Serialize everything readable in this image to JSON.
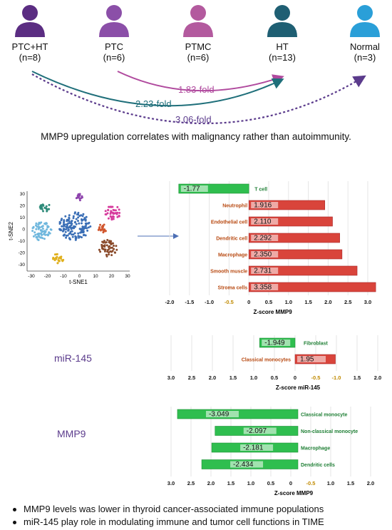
{
  "groups": [
    {
      "name": "PTC+HT",
      "n": "(n=8)",
      "color": "#5b2d82"
    },
    {
      "name": "PTC",
      "n": "(n=6)",
      "color": "#8b4fa8"
    },
    {
      "name": "PTMC",
      "n": "(n=6)",
      "color": "#b35a9e"
    },
    {
      "name": "HT",
      "n": "(n=13)",
      "color": "#1f5f73"
    },
    {
      "name": "Normal",
      "n": "(n=3)",
      "color": "#2a9fd8"
    }
  ],
  "folds": [
    {
      "label": "1.83-fold",
      "color": "#b04a9e"
    },
    {
      "label": "2.23-fold",
      "color": "#1f6f7a"
    },
    {
      "label": "3.06-fold",
      "color": "#5b3b8c"
    }
  ],
  "conclusion": "MMP9 upregulation correlates with malignancy rather than autoimmunity.",
  "tsne": {
    "xlabel": "t-SNE1",
    "ylabel": "t-SNE2",
    "xticks": [
      "-30",
      "-20",
      "-10",
      "0",
      "10",
      "20",
      "30"
    ],
    "yticks": [
      "30",
      "20",
      "10",
      "0",
      "-10",
      "-20",
      "-30"
    ]
  },
  "panel_labels": {
    "mir145": "miR-145",
    "mmp9": "MMP9"
  },
  "bullets": [
    "MMP9 levels was lower in thyroid cancer-associated immune populations",
    "miR-145 play role in modulating immune and tumor cell functions in TIME"
  ],
  "chart_data": [
    {
      "type": "bar",
      "orientation": "horizontal",
      "xlabel": "Z-score MMP9",
      "ticks": [
        "-2.0",
        "-1.5",
        "-1.0",
        "-0.5",
        "0",
        "0.5",
        "1.0",
        "1.5",
        "2.0",
        "2.5",
        "3.0"
      ],
      "xlim": [
        -2.0,
        3.2
      ],
      "bars": [
        {
          "cell": "T cell",
          "value": -1.77,
          "label": "-1.77"
        },
        {
          "cell": "Neutrophil",
          "value": 1.916,
          "label": "1.916"
        },
        {
          "cell": "Endothelial cell",
          "value": 2.11,
          "label": "2.110"
        },
        {
          "cell": "Dendritic cell",
          "value": 2.292,
          "label": "2.292"
        },
        {
          "cell": "Macrophage",
          "value": 2.35,
          "label": "2.350"
        },
        {
          "cell": "Smooth muscle",
          "value": 2.731,
          "label": "2.731"
        },
        {
          "cell": "Stroma cells",
          "value": 3.358,
          "label": "3.358"
        }
      ]
    },
    {
      "type": "bar",
      "orientation": "horizontal",
      "xlabel": "Z-score  miR-145",
      "ticks": [
        "3.0",
        "2.5",
        "2.0",
        "1.5",
        "1.0",
        "0.5",
        "0",
        "-0.5",
        "-1.0",
        "1.5",
        "2.0"
      ],
      "bars": [
        {
          "cell": "Fibroblast",
          "value": -1.949,
          "label": "-1.949"
        },
        {
          "cell": "Classical monocytes",
          "value": 1.95,
          "label": "1.95"
        }
      ]
    },
    {
      "type": "bar",
      "orientation": "horizontal",
      "xlabel": "Z-score MMP9",
      "ticks": [
        "3.0",
        "2.5",
        "2.0",
        "1.5",
        "1.0",
        "0.5",
        "0",
        "-0.5",
        "1.0",
        "1.5",
        "2.0"
      ],
      "bars": [
        {
          "cell": "Classical monocyte",
          "value": -3.049,
          "label": "-3.049"
        },
        {
          "cell": "Non-classical monocyte",
          "value": -2.097,
          "label": "-2.097"
        },
        {
          "cell": "Macrophage",
          "value": -2.181,
          "label": "-2.181"
        },
        {
          "cell": "Dendritic cells",
          "value": -2.434,
          "label": "-2.434"
        }
      ]
    }
  ]
}
